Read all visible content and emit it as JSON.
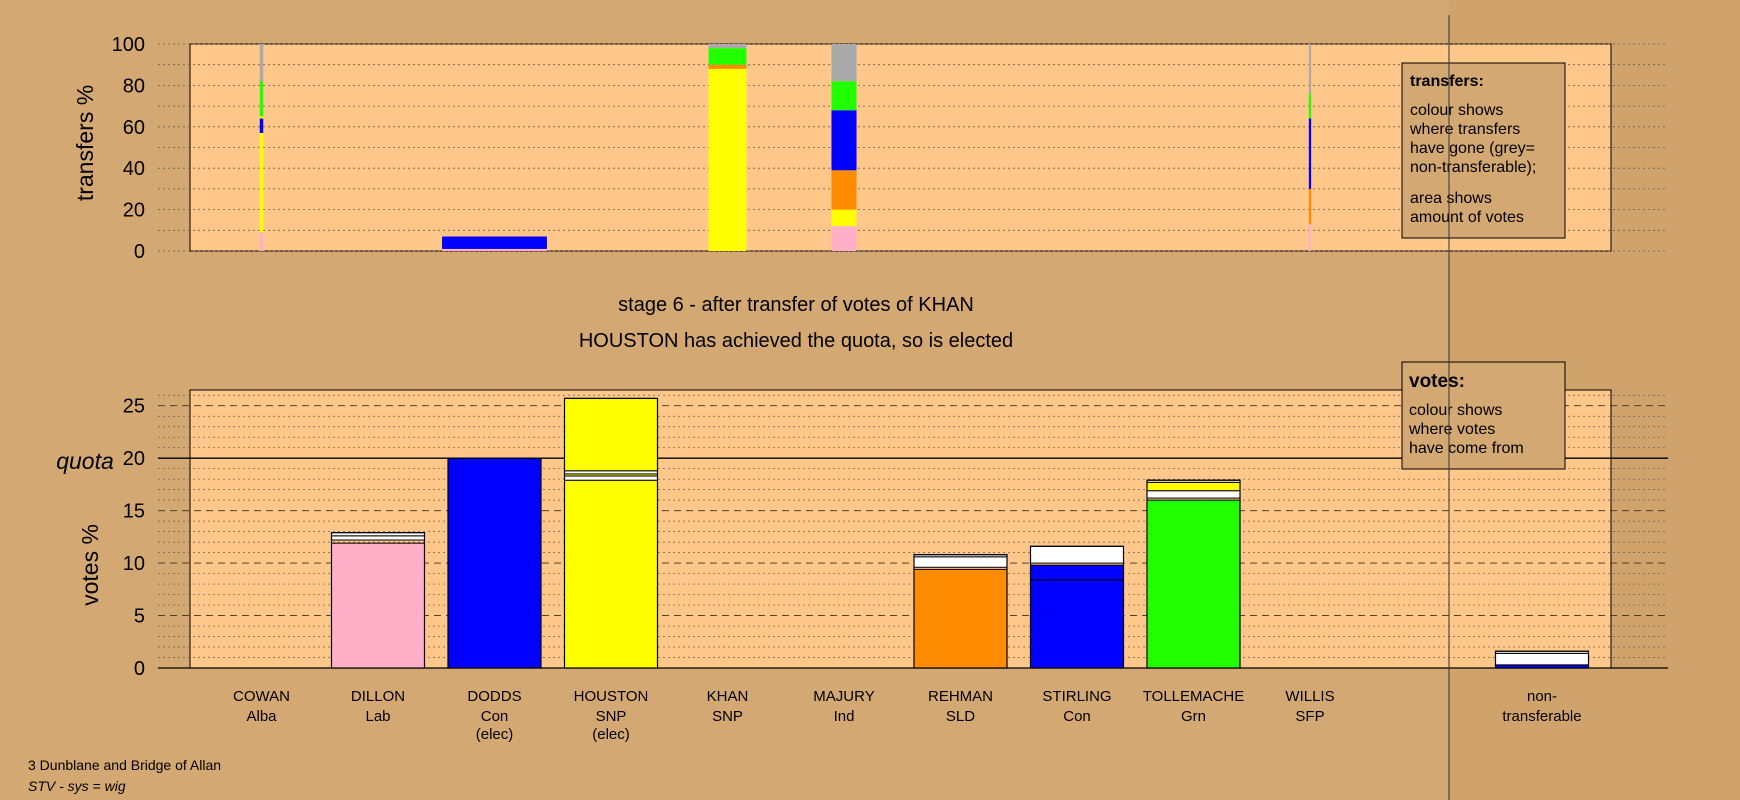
{
  "colors": {
    "page_bg": "#d4a872",
    "plot_bg": "#ffc88a",
    "Alba": "#ffff00",
    "Lab": "#ffb0c8",
    "Con": "#0000ff",
    "SNP": "#ffff00",
    "Ind": "#aaaaaa",
    "SLD": "#ff8c00",
    "Grn": "#22ff00",
    "SFP": "#cc88ff",
    "nontransferable": "#aaaaaa",
    "white": "#ffffff"
  },
  "title_lines": [
    "stage 6 - after transfer of votes of KHAN",
    "HOUSTON has achieved the quota, so is elected"
  ],
  "footer": {
    "line1": "3 Dunblane and Bridge of Allan",
    "line2": "STV - sys = wig"
  },
  "chart_data": [
    {
      "type": "bar",
      "name": "transfers",
      "ylabel": "transfers %",
      "ylim": [
        0,
        100
      ],
      "yticks": [
        0,
        20,
        40,
        60,
        80,
        100
      ],
      "grid": true,
      "legend": {
        "title": "transfers:",
        "lines": [
          "colour shows",
          "where transfers",
          "have gone (grey=",
          "non-transferable);",
          "",
          "area shows",
          "amount of votes"
        ]
      },
      "bars": [
        {
          "candidate": "COWAN",
          "width_pct": 0.6,
          "segments": [
            {
              "party": "Lab",
              "from": 0,
              "to": 9
            },
            {
              "party": "Alba",
              "from": 9,
              "to": 57
            },
            {
              "party": "Con",
              "from": 57,
              "to": 64
            },
            {
              "party": "Alba",
              "from": 64,
              "to": 65
            },
            {
              "party": "Grn",
              "from": 65,
              "to": 82
            },
            {
              "party": "nontransferable",
              "from": 82,
              "to": 100
            }
          ]
        },
        {
          "candidate": "DODDS",
          "width_pct": 18,
          "segments": [
            {
              "party": "Lab",
              "from": 0,
              "to": 1
            },
            {
              "party": "Con",
              "from": 1,
              "to": 7
            }
          ]
        },
        {
          "candidate": "KHAN",
          "width_pct": 6.5,
          "segments": [
            {
              "party": "SNP",
              "from": 0,
              "to": 88
            },
            {
              "party": "SLD",
              "from": 88,
              "to": 90
            },
            {
              "party": "Grn",
              "from": 90,
              "to": 98
            },
            {
              "party": "nontransferable",
              "from": 98,
              "to": 100
            }
          ]
        },
        {
          "candidate": "MAJURY",
          "width_pct": 4.3,
          "segments": [
            {
              "party": "Lab",
              "from": 0,
              "to": 12
            },
            {
              "party": "Alba",
              "from": 12,
              "to": 20
            },
            {
              "party": "SLD",
              "from": 20,
              "to": 39
            },
            {
              "party": "Con",
              "from": 39,
              "to": 68
            },
            {
              "party": "Grn",
              "from": 68,
              "to": 82
            },
            {
              "party": "nontransferable",
              "from": 82,
              "to": 100
            }
          ]
        },
        {
          "candidate": "WILLIS",
          "width_pct": 0.4,
          "segments": [
            {
              "party": "Lab",
              "from": 0,
              "to": 13
            },
            {
              "party": "SLD",
              "from": 13,
              "to": 30
            },
            {
              "party": "Con",
              "from": 30,
              "to": 64
            },
            {
              "party": "Grn",
              "from": 64,
              "to": 76
            },
            {
              "party": "nontransferable",
              "from": 76,
              "to": 100
            }
          ]
        }
      ]
    },
    {
      "type": "bar",
      "name": "votes",
      "ylabel": "votes %",
      "ylim": [
        0,
        26.5
      ],
      "yticks": [
        0,
        5,
        10,
        15,
        20,
        25
      ],
      "quota": 20,
      "quota_label": "quota",
      "grid": true,
      "legend": {
        "title": "votes:",
        "lines": [
          "colour shows",
          "where votes",
          "have come from"
        ]
      },
      "categories": [
        {
          "name": "COWAN",
          "party": "Alba",
          "note": ""
        },
        {
          "name": "DILLON",
          "party": "Lab",
          "note": ""
        },
        {
          "name": "DODDS",
          "party": "Con",
          "note": "(elec)"
        },
        {
          "name": "HOUSTON",
          "party": "SNP",
          "note": "(elec)"
        },
        {
          "name": "KHAN",
          "party": "SNP",
          "note": ""
        },
        {
          "name": "MAJURY",
          "party": "Ind",
          "note": ""
        },
        {
          "name": "REHMAN",
          "party": "SLD",
          "note": ""
        },
        {
          "name": "STIRLING",
          "party": "Con",
          "note": ""
        },
        {
          "name": "TOLLEMACHE",
          "party": "Grn",
          "note": ""
        },
        {
          "name": "WILLIS",
          "party": "SFP",
          "note": ""
        }
      ],
      "nontransferable_label": [
        "non-",
        "transferable"
      ],
      "bars": [
        {
          "candidate": "COWAN",
          "segments": []
        },
        {
          "candidate": "DILLON",
          "segments": [
            {
              "color": "Lab",
              "from": 0,
              "to": 11.9
            },
            {
              "color": "white",
              "from": 12.2,
              "to": 12.6
            },
            {
              "color": "white",
              "from": 12.6,
              "to": 12.9
            }
          ]
        },
        {
          "candidate": "DODDS",
          "segments": [
            {
              "color": "Con",
              "from": 0,
              "to": 20.0
            }
          ]
        },
        {
          "candidate": "HOUSTON",
          "segments": [
            {
              "color": "SNP",
              "from": 0,
              "to": 17.9
            },
            {
              "color": "white",
              "from": 17.9,
              "to": 18.3
            },
            {
              "color": "SNP",
              "from": 18.3,
              "to": 18.5
            },
            {
              "color": "white",
              "from": 18.5,
              "to": 18.8
            },
            {
              "color": "SNP",
              "from": 18.8,
              "to": 25.7
            }
          ]
        },
        {
          "candidate": "KHAN",
          "segments": []
        },
        {
          "candidate": "MAJURY",
          "segments": []
        },
        {
          "candidate": "REHMAN",
          "segments": [
            {
              "color": "SLD",
              "from": 0,
              "to": 9.4
            },
            {
              "color": "white",
              "from": 9.6,
              "to": 10.6
            },
            {
              "color": "white",
              "from": 10.6,
              "to": 10.8
            }
          ]
        },
        {
          "candidate": "STIRLING",
          "segments": [
            {
              "color": "Con",
              "from": 0,
              "to": 8.4
            },
            {
              "color": "Con",
              "from": 8.4,
              "to": 9.8
            },
            {
              "color": "white",
              "from": 10.0,
              "to": 11.6
            }
          ]
        },
        {
          "candidate": "TOLLEMACHE",
          "segments": [
            {
              "color": "Grn",
              "from": 0,
              "to": 16.0
            },
            {
              "color": "white",
              "from": 16.2,
              "to": 16.9
            },
            {
              "color": "SNP",
              "from": 16.9,
              "to": 17.7
            },
            {
              "color": "white",
              "from": 17.7,
              "to": 17.9
            }
          ]
        },
        {
          "candidate": "WILLIS",
          "segments": []
        },
        {
          "candidate": "non-transferable",
          "segments": [
            {
              "color": "Con",
              "from": 0,
              "to": 0.3
            },
            {
              "color": "white",
              "from": 0.3,
              "to": 1.4
            },
            {
              "color": "white",
              "from": 1.4,
              "to": 1.6
            }
          ]
        }
      ]
    }
  ]
}
